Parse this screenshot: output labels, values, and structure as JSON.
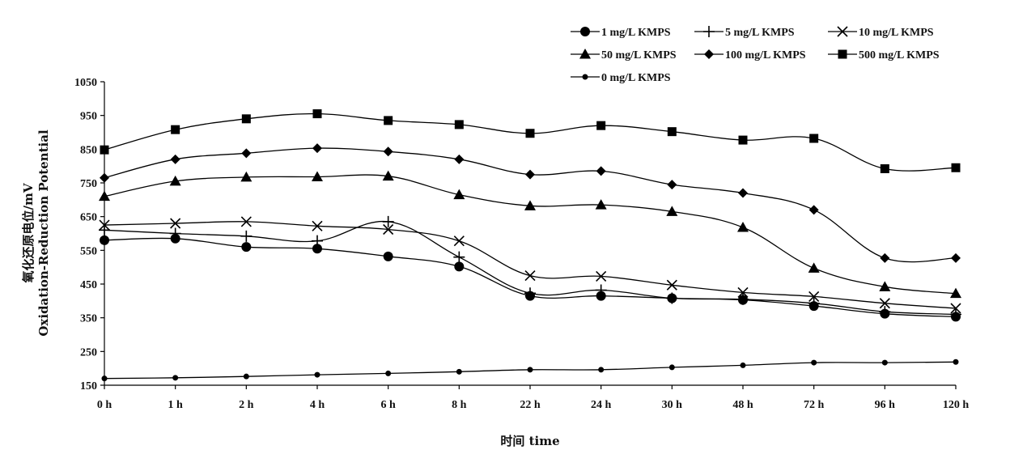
{
  "chart_data": {
    "type": "line",
    "xlabel": "时间 time",
    "ylabel_line1": "氧化还原电位/mV",
    "ylabel_line2": "Oxidation-Reduction Potential",
    "categories": [
      "0 h",
      "1 h",
      "2 h",
      "4 h",
      "6 h",
      "8 h",
      "22 h",
      "24 h",
      "30 h",
      "48 h",
      "72 h",
      "96 h",
      "120 h"
    ],
    "ylim": [
      150,
      1050
    ],
    "yticks": [
      150,
      250,
      350,
      450,
      550,
      650,
      750,
      850,
      950,
      1050
    ],
    "grid": false,
    "legend_position": "top-right",
    "series": [
      {
        "name": "1 mg/L KMPS",
        "marker": "circle",
        "values": [
          580,
          585,
          560,
          555,
          532,
          502,
          415,
          415,
          408,
          403,
          385,
          362,
          353
        ]
      },
      {
        "name": "5 mg/L KMPS",
        "marker": "plus",
        "values": [
          610,
          600,
          592,
          578,
          635,
          530,
          423,
          432,
          408,
          405,
          393,
          368,
          360
        ]
      },
      {
        "name": "10 mg/L KMPS",
        "marker": "x",
        "values": [
          625,
          630,
          635,
          622,
          612,
          578,
          475,
          473,
          447,
          425,
          413,
          393,
          378
        ]
      },
      {
        "name": "50 mg/L KMPS",
        "marker": "triangle",
        "values": [
          710,
          755,
          767,
          768,
          770,
          715,
          682,
          685,
          665,
          618,
          497,
          442,
          422
        ]
      },
      {
        "name": "100 mg/L KMPS",
        "marker": "diamond",
        "values": [
          765,
          820,
          838,
          853,
          843,
          820,
          775,
          785,
          745,
          720,
          670,
          527,
          527
        ]
      },
      {
        "name": "500 mg/L KMPS",
        "marker": "square",
        "values": [
          848,
          908,
          940,
          955,
          935,
          923,
          897,
          920,
          902,
          877,
          882,
          792,
          795
        ]
      },
      {
        "name": "0 mg/L KMPS",
        "marker": "smallcircle",
        "values": [
          170,
          172,
          176,
          181,
          185,
          190,
          196,
          196,
          203,
          209,
          217,
          217,
          219
        ]
      }
    ]
  }
}
